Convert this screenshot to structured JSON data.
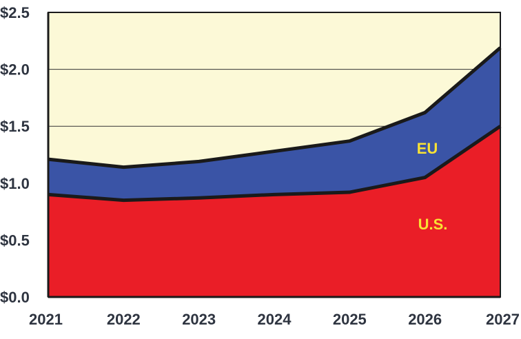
{
  "chart_data": {
    "type": "area",
    "stacked": true,
    "x": [
      2021,
      2022,
      2023,
      2024,
      2025,
      2026,
      2027
    ],
    "x_tick_labels": [
      "2021",
      "2022",
      "2023",
      "2024",
      "2025",
      "2026",
      "2027"
    ],
    "y_tick_labels": [
      "$0.0",
      "$0.5",
      "$1.0",
      "$1.5",
      "$2.0",
      "$2.5"
    ],
    "y_ticks": [
      0,
      0.5,
      1.0,
      1.5,
      2.0,
      2.5
    ],
    "ylim": [
      0,
      2.5
    ],
    "grid": true,
    "series": [
      {
        "name": "U.S.",
        "values": [
          0.9,
          0.85,
          0.87,
          0.9,
          0.92,
          1.05,
          1.5
        ],
        "color": "#ea1e27"
      },
      {
        "name": "EU",
        "values": [
          0.31,
          0.29,
          0.32,
          0.38,
          0.45,
          0.57,
          0.69
        ],
        "color": "#3a54a6"
      }
    ],
    "background_color": "#fcf9d7",
    "label_color": "#f8e234"
  }
}
